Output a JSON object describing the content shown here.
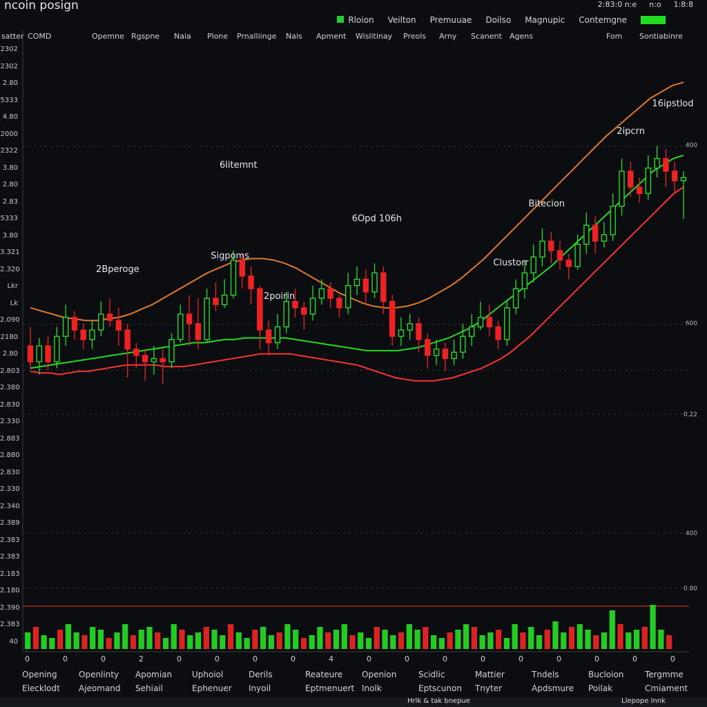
{
  "app": {
    "title": "ncoin posign",
    "top_right": [
      "2:83:0 n:e",
      "n:o",
      "1:8:8"
    ]
  },
  "legend": {
    "items": [
      "Rloion",
      "Veilton",
      "Premuuae",
      "Doilso",
      "Magnupic",
      "Contemgne"
    ],
    "accent": "#22dd22"
  },
  "header_row": {
    "left_label": "satter",
    "code": "COMD",
    "columns": [
      "Opemne",
      "Rgspne",
      "Naia",
      "Plone",
      "Prnalliinge",
      "Nais",
      "Apment",
      "Wislitinay",
      "Preols",
      "Arny",
      "Scanent",
      "Agens",
      "Fom",
      "Sontiabinre"
    ]
  },
  "y_axis_labels": [
    "2302",
    "2302",
    "2.80",
    "5333",
    "4.80",
    "2000",
    "2322",
    "3.80",
    "2.80",
    "2.83",
    "5333",
    "3.80",
    "3.321",
    "2.320",
    "Lkr",
    "Lk",
    "2.090",
    "2180",
    "2.80",
    "2.803",
    "2.380",
    "2.830",
    "2.330",
    "2.883",
    "2.880",
    "2.830",
    "2.330",
    "2.340",
    "2.389",
    "2.383",
    "2.383",
    "2.183",
    "2.180",
    "2.390",
    "2.383",
    "40"
  ],
  "right_axis_labels": [
    "400",
    "600",
    "0.22",
    "400",
    "0.80"
  ],
  "chart_data": {
    "type": "candlestick",
    "annotations": [
      "2Bperoge",
      "Sigpoms",
      "6litemnt",
      "2poirin",
      "6Opd 106h",
      "Clustorr",
      "Bitecion",
      "2ipcrn",
      "16ipstlod"
    ],
    "ohlc": [
      [
        2.3,
        2.2,
        2.42,
        2.16
      ],
      [
        2.2,
        2.3,
        2.35,
        2.12
      ],
      [
        2.3,
        2.2,
        2.36,
        2.15
      ],
      [
        2.2,
        2.36,
        2.42,
        2.16
      ],
      [
        2.36,
        2.48,
        2.56,
        2.3
      ],
      [
        2.48,
        2.4,
        2.52,
        2.34
      ],
      [
        2.4,
        2.34,
        2.44,
        2.28
      ],
      [
        2.34,
        2.4,
        2.46,
        2.28
      ],
      [
        2.4,
        2.5,
        2.58,
        2.36
      ],
      [
        2.5,
        2.46,
        2.6,
        2.42
      ],
      [
        2.46,
        2.4,
        2.54,
        2.3
      ],
      [
        2.4,
        2.28,
        2.44,
        2.1
      ],
      [
        2.28,
        2.24,
        2.32,
        2.16
      ],
      [
        2.24,
        2.2,
        2.28,
        2.08
      ],
      [
        2.2,
        2.22,
        2.3,
        2.12
      ],
      [
        2.22,
        2.2,
        2.28,
        2.06
      ],
      [
        2.2,
        2.34,
        2.38,
        2.16
      ],
      [
        2.34,
        2.5,
        2.56,
        2.32
      ],
      [
        2.5,
        2.44,
        2.62,
        2.3
      ],
      [
        2.44,
        2.34,
        2.6,
        2.28
      ],
      [
        2.34,
        2.6,
        2.66,
        2.32
      ],
      [
        2.6,
        2.56,
        2.7,
        2.52
      ],
      [
        2.56,
        2.62,
        2.72,
        2.54
      ],
      [
        2.62,
        2.84,
        2.9,
        2.6
      ],
      [
        2.84,
        2.74,
        2.88,
        2.66
      ],
      [
        2.74,
        2.66,
        2.8,
        2.56
      ],
      [
        2.66,
        2.4,
        2.68,
        2.28
      ],
      [
        2.4,
        2.32,
        2.46,
        2.24
      ],
      [
        2.32,
        2.42,
        2.5,
        2.28
      ],
      [
        2.42,
        2.58,
        2.64,
        2.38
      ],
      [
        2.58,
        2.54,
        2.66,
        2.48
      ],
      [
        2.54,
        2.5,
        2.58,
        2.4
      ],
      [
        2.5,
        2.6,
        2.68,
        2.46
      ],
      [
        2.6,
        2.66,
        2.72,
        2.56
      ],
      [
        2.66,
        2.6,
        2.7,
        2.54
      ],
      [
        2.6,
        2.54,
        2.62,
        2.48
      ],
      [
        2.54,
        2.68,
        2.76,
        2.5
      ],
      [
        2.68,
        2.72,
        2.8,
        2.62
      ],
      [
        2.72,
        2.64,
        2.78,
        2.56
      ],
      [
        2.64,
        2.76,
        2.82,
        2.6
      ],
      [
        2.76,
        2.58,
        2.8,
        2.5
      ],
      [
        2.58,
        2.36,
        2.62,
        2.3
      ],
      [
        2.36,
        2.4,
        2.48,
        2.3
      ],
      [
        2.4,
        2.44,
        2.5,
        2.34
      ],
      [
        2.44,
        2.34,
        2.48,
        2.26
      ],
      [
        2.34,
        2.24,
        2.38,
        2.16
      ],
      [
        2.24,
        2.28,
        2.34,
        2.18
      ],
      [
        2.28,
        2.22,
        2.32,
        2.14
      ],
      [
        2.22,
        2.26,
        2.34,
        2.18
      ],
      [
        2.26,
        2.36,
        2.44,
        2.22
      ],
      [
        2.36,
        2.42,
        2.5,
        2.3
      ],
      [
        2.42,
        2.48,
        2.58,
        2.4
      ],
      [
        2.48,
        2.42,
        2.56,
        2.36
      ],
      [
        2.42,
        2.34,
        2.46,
        2.28
      ],
      [
        2.34,
        2.54,
        2.58,
        2.3
      ],
      [
        2.54,
        2.66,
        2.72,
        2.5
      ],
      [
        2.66,
        2.76,
        2.84,
        2.6
      ],
      [
        2.76,
        2.86,
        2.94,
        2.7
      ],
      [
        2.86,
        2.96,
        3.04,
        2.8
      ],
      [
        2.96,
        2.9,
        3.02,
        2.82
      ],
      [
        2.9,
        2.84,
        2.96,
        2.78
      ],
      [
        2.84,
        2.8,
        2.88,
        2.72
      ],
      [
        2.8,
        2.94,
        3.0,
        2.78
      ],
      [
        2.94,
        3.06,
        3.14,
        2.88
      ],
      [
        3.06,
        2.96,
        3.12,
        2.88
      ],
      [
        2.96,
        3.0,
        3.08,
        2.92
      ],
      [
        3.0,
        3.18,
        3.26,
        2.96
      ],
      [
        3.18,
        3.4,
        3.48,
        3.12
      ],
      [
        3.4,
        3.3,
        3.46,
        3.24
      ],
      [
        3.3,
        3.26,
        3.36,
        3.2
      ],
      [
        3.26,
        3.42,
        3.5,
        3.22
      ],
      [
        3.42,
        3.48,
        3.56,
        3.36
      ],
      [
        3.48,
        3.4,
        3.54,
        3.3
      ],
      [
        3.4,
        3.34,
        3.46,
        3.26
      ],
      [
        3.34,
        3.36,
        3.4,
        3.1
      ]
    ],
    "ma_series": [
      {
        "color": "#ff3333",
        "values": [
          2.14,
          2.13,
          2.13,
          2.12,
          2.13,
          2.14,
          2.14,
          2.15,
          2.16,
          2.17,
          2.18,
          2.18,
          2.18,
          2.18,
          2.17,
          2.17,
          2.17,
          2.18,
          2.19,
          2.2,
          2.21,
          2.22,
          2.23,
          2.24,
          2.25,
          2.25,
          2.25,
          2.25,
          2.24,
          2.23,
          2.22,
          2.21,
          2.2,
          2.19,
          2.18,
          2.16,
          2.14,
          2.12,
          2.1,
          2.09,
          2.08,
          2.08,
          2.08,
          2.09,
          2.1,
          2.12,
          2.14,
          2.16,
          2.19,
          2.22,
          2.26,
          2.31,
          2.36,
          2.42,
          2.48,
          2.54,
          2.6,
          2.66,
          2.72,
          2.78,
          2.84,
          2.9,
          2.96,
          3.02,
          3.08,
          3.14,
          3.2,
          3.26,
          3.3
        ]
      },
      {
        "color": "#22dd22",
        "values": [
          2.16,
          2.17,
          2.18,
          2.19,
          2.2,
          2.21,
          2.22,
          2.23,
          2.24,
          2.25,
          2.26,
          2.27,
          2.28,
          2.29,
          2.3,
          2.31,
          2.32,
          2.32,
          2.33,
          2.34,
          2.34,
          2.35,
          2.35,
          2.35,
          2.35,
          2.35,
          2.34,
          2.33,
          2.32,
          2.31,
          2.3,
          2.29,
          2.28,
          2.27,
          2.27,
          2.27,
          2.27,
          2.28,
          2.29,
          2.31,
          2.33,
          2.35,
          2.38,
          2.41,
          2.45,
          2.5,
          2.55,
          2.6,
          2.65,
          2.7,
          2.75,
          2.8,
          2.86,
          2.92,
          2.98,
          3.04,
          3.1,
          3.16,
          3.22,
          3.28,
          3.34,
          3.4,
          3.44,
          3.48,
          3.5
        ]
      },
      {
        "color": "#e07a2c",
        "values": [
          2.54,
          2.52,
          2.5,
          2.48,
          2.47,
          2.46,
          2.46,
          2.47,
          2.48,
          2.5,
          2.53,
          2.56,
          2.6,
          2.64,
          2.68,
          2.72,
          2.76,
          2.79,
          2.82,
          2.84,
          2.85,
          2.85,
          2.84,
          2.82,
          2.79,
          2.75,
          2.71,
          2.67,
          2.63,
          2.6,
          2.57,
          2.55,
          2.54,
          2.54,
          2.55,
          2.57,
          2.6,
          2.64,
          2.68,
          2.73,
          2.79,
          2.85,
          2.92,
          2.99,
          3.06,
          3.13,
          3.2,
          3.27,
          3.34,
          3.41,
          3.48,
          3.55,
          3.62,
          3.68,
          3.74,
          3.8,
          3.86,
          3.9,
          3.94,
          3.96
        ]
      }
    ],
    "volume": [
      0.6,
      0.8,
      0.5,
      0.4,
      0.7,
      0.9,
      0.6,
      0.5,
      0.8,
      0.7,
      0.4,
      0.6,
      0.9,
      0.5,
      0.7,
      0.8,
      0.6,
      0.4,
      0.9,
      0.7,
      0.5,
      0.6,
      0.8,
      0.7,
      0.5,
      0.9,
      0.6,
      0.4,
      0.7,
      0.8,
      0.5,
      0.6,
      0.9,
      0.7,
      0.4,
      0.5,
      0.8,
      0.6,
      0.7,
      0.9,
      0.5,
      0.6,
      0.4,
      0.8,
      0.7,
      0.5,
      0.6,
      0.9,
      0.7,
      0.8,
      0.5,
      0.4,
      0.6,
      0.7,
      0.9,
      0.8,
      0.5,
      0.6,
      0.7,
      0.4,
      0.9,
      0.6,
      0.8,
      0.5,
      0.7,
      1.0,
      0.6,
      0.8,
      0.9,
      0.7,
      0.5,
      0.6,
      1.4,
      0.9,
      0.6,
      0.7,
      0.8,
      1.6,
      0.7,
      0.5
    ]
  },
  "x_axis_labels": [
    "0",
    "0",
    "0",
    "2",
    "0",
    "0",
    "0",
    "0",
    "4",
    "0",
    "0",
    "0",
    "0",
    "0",
    "0",
    "0",
    "0",
    "0"
  ],
  "footer": {
    "row1": [
      "Opening",
      "Openlinty",
      "Apomian",
      "Uphoiol",
      "Derils",
      "Reateure",
      "Openion",
      "Scidlic",
      "Mattier",
      "Tndels",
      "Bucloion",
      "Tergmme"
    ],
    "row2": [
      "Elecklodt",
      "Ajeomand",
      "Sehiail",
      "Ephenuer",
      "Inyoil",
      "Eptmenuert",
      "Inolk",
      "Eptscunon",
      "Tnyter",
      "Apdsmure",
      "Poilak",
      "Cmiament"
    ]
  },
  "bottom_bar": {
    "center": "Hrlk & tak bnepue",
    "right": "Llepope lnnk"
  }
}
